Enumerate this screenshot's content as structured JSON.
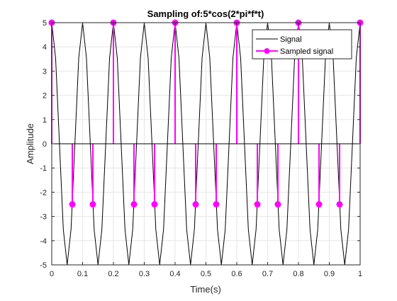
{
  "chart_data": {
    "type": "line",
    "title": "Sampling of:5*cos(2*pi*f*t)",
    "xlabel": "Time(s)",
    "ylabel": "Amplitude",
    "xlim": [
      0,
      1
    ],
    "ylim": [
      -5,
      5
    ],
    "grid": true,
    "legend_position": "top-right",
    "x_ticks": [
      0,
      0.1,
      0.2,
      0.3,
      0.4,
      0.5,
      0.6,
      0.7,
      0.8,
      0.9,
      1
    ],
    "x_tick_labels": [
      "0",
      "0.1",
      "0.2",
      "0.3",
      "0.4",
      "0.5",
      "0.6",
      "0.7",
      "0.8",
      "0.9",
      "1"
    ],
    "y_ticks": [
      -5,
      -4,
      -3,
      -2,
      -1,
      0,
      1,
      2,
      3,
      4,
      5
    ],
    "y_tick_labels": [
      "-5",
      "-4",
      "-3",
      "-2",
      "-1",
      "0",
      "1",
      "2",
      "3",
      "4",
      "5"
    ],
    "series": [
      {
        "name": "Signal",
        "style": "line",
        "color": "#000000",
        "x": [
          0,
          0.0125,
          0.025,
          0.0375,
          0.05,
          0.0625,
          0.075,
          0.0875,
          0.1,
          0.1125,
          0.125,
          0.1375,
          0.15,
          0.1625,
          0.175,
          0.1875,
          0.2,
          0.2125,
          0.225,
          0.2375,
          0.25,
          0.2625,
          0.275,
          0.2875,
          0.3,
          0.3125,
          0.325,
          0.3375,
          0.35,
          0.3625,
          0.375,
          0.3875,
          0.4,
          0.4125,
          0.425,
          0.4375,
          0.45,
          0.4625,
          0.475,
          0.4875,
          0.5,
          0.5125,
          0.525,
          0.5375,
          0.55,
          0.5625,
          0.575,
          0.5875,
          0.6,
          0.6125,
          0.625,
          0.6375,
          0.65,
          0.6625,
          0.675,
          0.6875,
          0.7,
          0.7125,
          0.725,
          0.7375,
          0.75,
          0.7625,
          0.775,
          0.7875,
          0.8,
          0.8125,
          0.825,
          0.8375,
          0.85,
          0.8625,
          0.875,
          0.8875,
          0.9,
          0.9125,
          0.925,
          0.9375,
          0.95,
          0.9625,
          0.975,
          0.9875,
          1
        ],
        "y": [
          5,
          3.54,
          0,
          -3.54,
          -5,
          -3.54,
          0,
          3.54,
          5,
          3.54,
          0,
          -3.54,
          -5,
          -3.54,
          0,
          3.54,
          5,
          3.54,
          0,
          -3.54,
          -5,
          -3.54,
          0,
          3.54,
          5,
          3.54,
          0,
          -3.54,
          -5,
          -3.54,
          0,
          3.54,
          5,
          3.54,
          0,
          -3.54,
          -5,
          -3.54,
          0,
          3.54,
          5,
          3.54,
          0,
          -3.54,
          -5,
          -3.54,
          0,
          3.54,
          5,
          3.54,
          0,
          -3.54,
          -5,
          -3.54,
          0,
          3.54,
          5,
          3.54,
          0,
          -3.54,
          -5,
          -3.54,
          0,
          3.54,
          5,
          3.54,
          0,
          -3.54,
          -5,
          -3.54,
          0,
          3.54,
          5,
          3.54,
          0,
          -3.54,
          -5,
          -3.54,
          0,
          3.54,
          5
        ]
      },
      {
        "name": "Sampled signal",
        "style": "stem",
        "color": "#ff00ff",
        "x": [
          0,
          0.0667,
          0.1333,
          0.2,
          0.2667,
          0.3333,
          0.4,
          0.4667,
          0.5333,
          0.6,
          0.6667,
          0.7333,
          0.8,
          0.8667,
          0.9333,
          1
        ],
        "y": [
          5,
          -2.5,
          -2.5,
          5,
          -2.5,
          -2.5,
          5,
          -2.5,
          -2.5,
          5,
          -2.5,
          -2.5,
          5,
          -2.5,
          -2.5,
          5
        ]
      }
    ]
  }
}
